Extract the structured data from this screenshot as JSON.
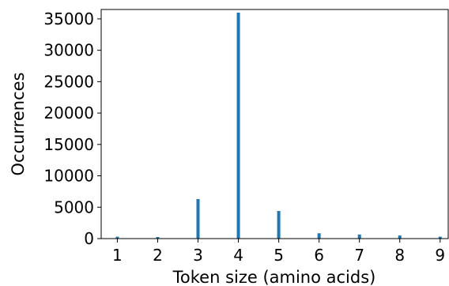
{
  "chart_data": {
    "type": "bar",
    "title": "",
    "xlabel": "Token size (amino acids)",
    "ylabel": "Occurrences",
    "categories": [
      1,
      2,
      3,
      4,
      5,
      6,
      7,
      8,
      9
    ],
    "x_ticks": [
      "1",
      "2",
      "3",
      "4",
      "5",
      "6",
      "7",
      "8",
      "9"
    ],
    "y_ticks": [
      "0",
      "5000",
      "10000",
      "15000",
      "20000",
      "25000",
      "30000",
      "35000"
    ],
    "y_tick_values": [
      0,
      5000,
      10000,
      15000,
      20000,
      25000,
      30000,
      35000
    ],
    "values": [
      300,
      250,
      6300,
      36000,
      4400,
      850,
      650,
      500,
      300
    ],
    "xlim": [
      0.6,
      9.2
    ],
    "ylim": [
      0,
      36500
    ],
    "bar_color": "#1f77b4",
    "grid": false,
    "legend": "none"
  }
}
